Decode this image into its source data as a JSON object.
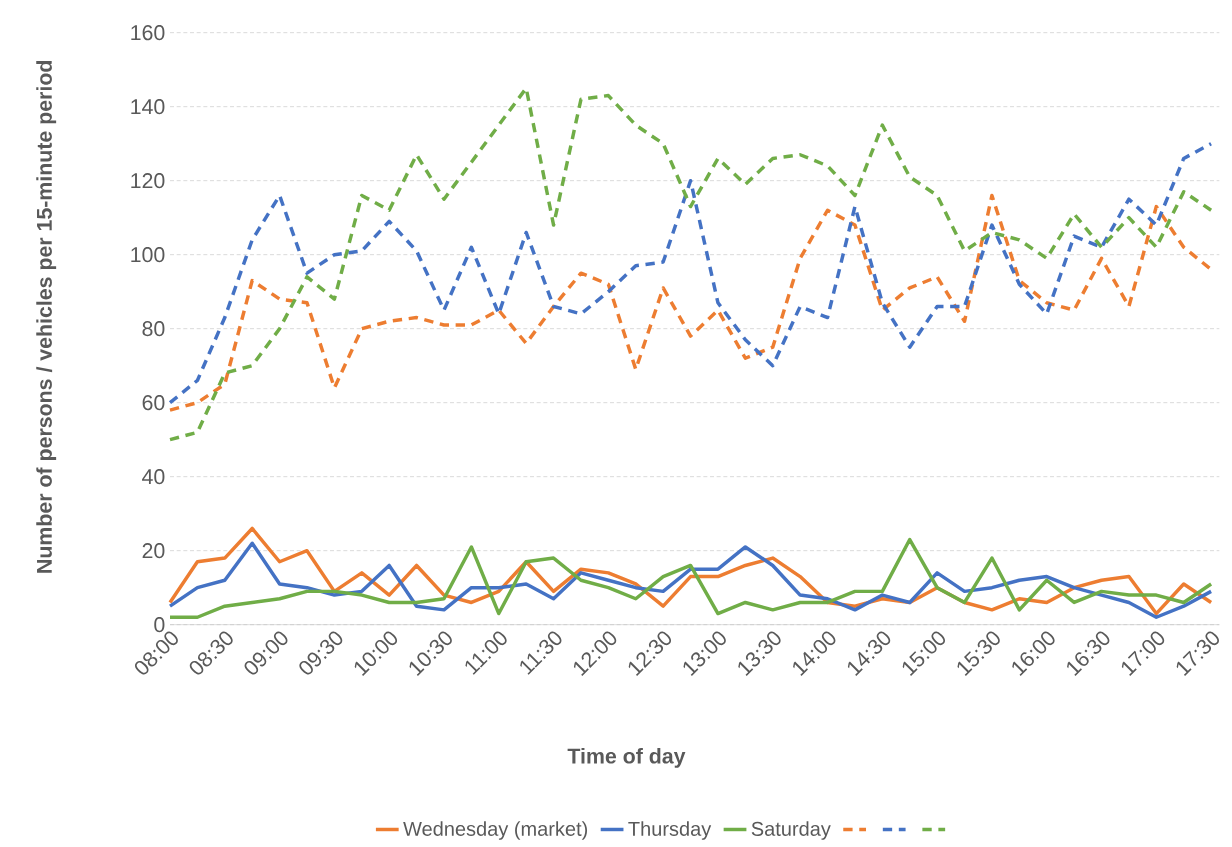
{
  "chart_data": {
    "type": "line",
    "xlabel": "Time of day",
    "ylabel": "Number of persons / vehicles per 15-minute period",
    "categories": [
      "08:00",
      null,
      "08:30",
      null,
      "09:00",
      null,
      "09:30",
      null,
      "10:00",
      null,
      "10:30",
      null,
      "11:00",
      null,
      "11:30",
      null,
      "12:00",
      null,
      "12:30",
      null,
      "13:00",
      null,
      "13:30",
      null,
      "14:00",
      null,
      "14:30",
      null,
      "15:00",
      null,
      "15:30",
      null,
      "16:00",
      null,
      "16:30",
      null,
      "17:00",
      null,
      "17:30"
    ],
    "series": [
      {
        "name": "Wednesday (market)",
        "color": "#ed7d31",
        "line_style": "solid",
        "values": [
          6,
          17,
          18,
          26,
          17,
          20,
          9,
          14,
          8,
          16,
          8,
          6,
          9,
          17,
          9,
          15,
          14,
          11,
          5,
          13,
          13,
          16,
          18,
          13,
          6,
          5,
          7,
          6,
          10,
          6,
          4,
          7,
          6,
          10,
          12,
          13,
          3,
          11,
          6
        ]
      },
      {
        "name": "Thursday",
        "color": "#4472c4",
        "line_style": "solid",
        "values": [
          5,
          10,
          12,
          22,
          11,
          10,
          8,
          9,
          16,
          5,
          4,
          10,
          10,
          11,
          7,
          14,
          12,
          10,
          9,
          15,
          15,
          21,
          16,
          8,
          7,
          4,
          8,
          6,
          14,
          9,
          10,
          12,
          13,
          10,
          8,
          6,
          2,
          5,
          9
        ]
      },
      {
        "name": "Saturday",
        "color": "#70ad47",
        "line_style": "solid",
        "values": [
          2,
          2,
          5,
          6,
          7,
          9,
          9,
          8,
          6,
          6,
          7,
          21,
          3,
          17,
          18,
          12,
          10,
          7,
          13,
          16,
          3,
          6,
          4,
          6,
          6,
          9,
          9,
          23,
          10,
          6,
          18,
          4,
          12,
          6,
          9,
          8,
          8,
          6,
          11
        ]
      },
      {
        "color": "#ed7d31",
        "line_style": "dashed",
        "values": [
          58,
          60,
          65,
          93,
          88,
          87,
          64,
          80,
          82,
          83,
          81,
          81,
          85,
          76,
          86,
          95,
          92,
          69,
          91,
          78,
          85,
          72,
          75,
          99,
          112,
          108,
          85,
          91,
          94,
          82,
          116,
          93,
          87,
          85,
          99,
          86,
          113,
          102,
          96
        ]
      },
      {
        "color": "#4472c4",
        "line_style": "dashed",
        "values": [
          60,
          66,
          83,
          104,
          116,
          95,
          100,
          101,
          109,
          101,
          85,
          102,
          84,
          106,
          86,
          84,
          90,
          97,
          98,
          120,
          87,
          77,
          70,
          86,
          83,
          113,
          87,
          75,
          86,
          86,
          108,
          92,
          84,
          105,
          102,
          115,
          108,
          126,
          130
        ]
      },
      {
        "color": "#70ad47",
        "line_style": "dashed",
        "values": [
          50,
          52,
          68,
          70,
          80,
          94,
          88,
          116,
          112,
          127,
          115,
          125,
          135,
          145,
          108,
          142,
          143,
          135,
          130,
          113,
          126,
          119,
          126,
          127,
          124,
          116,
          135,
          121,
          116,
          101,
          106,
          104,
          99,
          111,
          102,
          110,
          102,
          117,
          112
        ]
      }
    ],
    "ylim": [
      0,
      160
    ],
    "yticks": [
      0,
      20,
      40,
      60,
      80,
      100,
      120,
      140,
      160
    ],
    "grid": "y",
    "legend": "bottom"
  }
}
